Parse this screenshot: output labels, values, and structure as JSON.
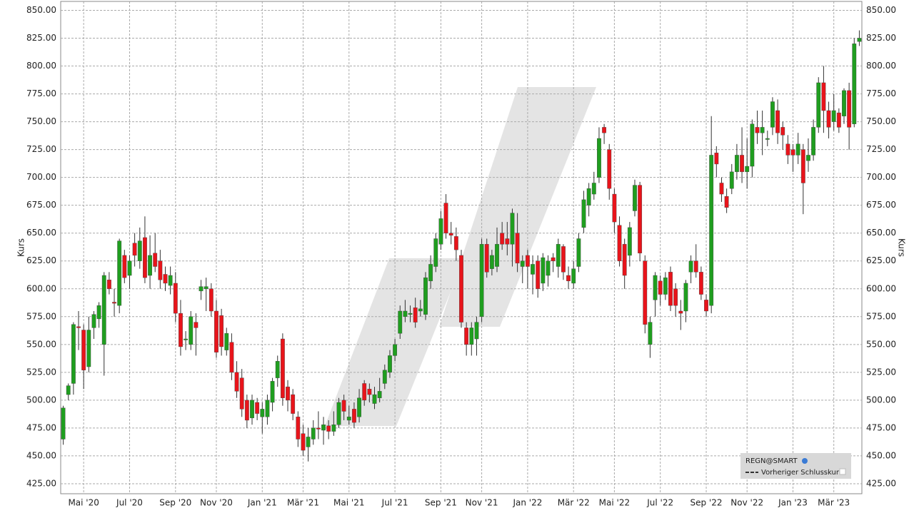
{
  "chart_data": {
    "type": "candlestick",
    "y_label": "Kurs",
    "legend": {
      "symbol": "REGN@SMART",
      "previous_close": "Vorheriger Schlusskurs"
    },
    "up_color": "#1f9e1f",
    "down_color": "#e8141b",
    "grid": true,
    "ylim": [
      416,
      858
    ],
    "yticks": [
      {
        "value": 425,
        "label": "425.00"
      },
      {
        "value": 450,
        "label": "450.00"
      },
      {
        "value": 475,
        "label": "475.00"
      },
      {
        "value": 500,
        "label": "500.00"
      },
      {
        "value": 525,
        "label": "525.00"
      },
      {
        "value": 550,
        "label": "550.00"
      },
      {
        "value": 575,
        "label": "575.00"
      },
      {
        "value": 600,
        "label": "600.00"
      },
      {
        "value": 625,
        "label": "625.00"
      },
      {
        "value": 650,
        "label": "650.00"
      },
      {
        "value": 675,
        "label": "675.00"
      },
      {
        "value": 700,
        "label": "700.00"
      },
      {
        "value": 725,
        "label": "725.00"
      },
      {
        "value": 750,
        "label": "750.00"
      },
      {
        "value": 775,
        "label": "775.00"
      },
      {
        "value": 800,
        "label": "800.00"
      },
      {
        "value": 825,
        "label": "825.00"
      },
      {
        "value": 850,
        "label": "850.00"
      }
    ],
    "categories": [
      null,
      null,
      null,
      null,
      "Mai '20",
      null,
      null,
      null,
      null,
      null,
      null,
      null,
      null,
      "Jul '20",
      null,
      null,
      null,
      null,
      null,
      null,
      null,
      null,
      "Sep '20",
      null,
      null,
      null,
      null,
      null,
      null,
      null,
      "Nov '20",
      null,
      null,
      null,
      null,
      null,
      null,
      null,
      null,
      "Jan '21",
      null,
      null,
      null,
      null,
      null,
      null,
      null,
      "Mär '21",
      null,
      null,
      null,
      null,
      null,
      null,
      null,
      null,
      "Mai '21",
      null,
      null,
      null,
      null,
      null,
      null,
      null,
      null,
      "Jul '21",
      null,
      null,
      null,
      null,
      null,
      null,
      null,
      null,
      "Sep '21",
      null,
      null,
      null,
      null,
      null,
      null,
      null,
      "Nov '21",
      null,
      null,
      null,
      null,
      null,
      null,
      null,
      null,
      "Jan '22",
      null,
      null,
      null,
      null,
      null,
      null,
      null,
      null,
      "Mär '22",
      null,
      null,
      null,
      null,
      null,
      null,
      null,
      "Mai '22",
      null,
      null,
      null,
      null,
      null,
      null,
      null,
      null,
      "Jul '22",
      null,
      null,
      null,
      null,
      null,
      null,
      null,
      null,
      "Sep '22",
      null,
      null,
      null,
      null,
      null,
      null,
      null,
      "Nov '22",
      null,
      null,
      null,
      null,
      null,
      null,
      null,
      null,
      "Jan '23",
      null,
      null,
      null,
      null,
      null,
      null,
      null,
      "Mär '23",
      null,
      null,
      null,
      null,
      null
    ],
    "open": [
      465,
      505,
      515,
      566,
      563,
      530,
      565,
      573,
      550,
      608,
      588,
      585,
      630,
      612,
      641,
      625,
      646,
      612,
      632,
      625,
      613,
      603,
      605,
      578,
      555,
      550,
      570,
      598,
      600,
      600,
      580,
      576,
      545,
      552,
      525,
      520,
      500,
      484,
      498,
      485,
      485,
      498,
      520,
      555,
      512,
      505,
      485,
      470,
      458,
      465,
      475,
      473,
      477,
      472,
      478,
      500,
      482,
      492,
      485,
      515,
      510,
      497,
      502,
      515,
      525,
      540,
      560,
      575,
      577,
      583,
      580,
      577,
      607,
      620,
      640,
      677,
      650,
      647,
      630,
      565,
      550,
      555,
      575,
      640,
      618,
      620,
      650,
      645,
      640,
      650,
      620,
      630,
      613,
      625,
      605,
      612,
      628,
      620,
      638,
      612,
      605,
      620,
      655,
      675,
      685,
      700,
      745,
      725,
      685,
      657,
      640,
      630,
      670,
      693,
      625,
      550,
      590,
      607,
      595,
      615,
      600,
      580,
      580,
      615,
      625,
      615,
      590,
      585,
      722,
      695,
      683,
      690,
      705,
      720,
      705,
      710,
      745,
      740,
      735,
      745,
      760,
      745,
      730,
      725,
      720,
      725,
      715,
      720,
      745,
      785,
      760,
      750,
      758,
      755,
      778,
      748,
      822
    ],
    "high": [
      495,
      515,
      570,
      580,
      568,
      575,
      580,
      588,
      615,
      615,
      600,
      645,
      635,
      630,
      650,
      655,
      665,
      648,
      650,
      635,
      620,
      620,
      615,
      590,
      562,
      580,
      578,
      608,
      610,
      605,
      590,
      582,
      565,
      560,
      535,
      528,
      505,
      505,
      502,
      498,
      505,
      520,
      540,
      560,
      518,
      510,
      490,
      478,
      475,
      482,
      490,
      485,
      482,
      490,
      502,
      505,
      495,
      498,
      510,
      518,
      515,
      512,
      520,
      532,
      545,
      555,
      585,
      590,
      585,
      592,
      590,
      615,
      630,
      650,
      670,
      685,
      660,
      655,
      635,
      570,
      570,
      575,
      645,
      645,
      635,
      655,
      660,
      660,
      672,
      668,
      630,
      635,
      630,
      630,
      632,
      630,
      632,
      645,
      640,
      620,
      625,
      650,
      688,
      695,
      705,
      745,
      748,
      730,
      690,
      665,
      645,
      660,
      698,
      696,
      630,
      575,
      615,
      612,
      615,
      620,
      605,
      590,
      608,
      630,
      640,
      620,
      595,
      755,
      728,
      700,
      690,
      712,
      730,
      745,
      735,
      752,
      760,
      760,
      742,
      772,
      770,
      750,
      738,
      730,
      740,
      730,
      735,
      752,
      790,
      800,
      768,
      775,
      762,
      780,
      785,
      825,
      832
    ],
    "low": [
      460,
      500,
      505,
      545,
      510,
      525,
      555,
      565,
      522,
      595,
      575,
      578,
      605,
      600,
      620,
      618,
      605,
      600,
      615,
      600,
      598,
      595,
      570,
      540,
      545,
      545,
      540,
      590,
      580,
      575,
      538,
      540,
      540,
      518,
      502,
      485,
      475,
      478,
      482,
      470,
      478,
      490,
      512,
      495,
      490,
      482,
      458,
      450,
      445,
      460,
      465,
      460,
      465,
      468,
      475,
      482,
      478,
      475,
      480,
      495,
      498,
      492,
      498,
      510,
      520,
      535,
      555,
      570,
      570,
      565,
      575,
      572,
      600,
      615,
      635,
      645,
      640,
      625,
      565,
      540,
      540,
      540,
      570,
      610,
      612,
      615,
      635,
      630,
      620,
      615,
      605,
      600,
      595,
      592,
      598,
      602,
      615,
      610,
      608,
      600,
      600,
      615,
      650,
      665,
      680,
      695,
      730,
      680,
      650,
      620,
      600,
      620,
      665,
      625,
      560,
      538,
      575,
      585,
      590,
      580,
      575,
      563,
      570,
      605,
      610,
      590,
      575,
      578,
      700,
      678,
      668,
      685,
      698,
      695,
      690,
      700,
      730,
      720,
      728,
      738,
      730,
      725,
      712,
      705,
      712,
      667,
      705,
      715,
      740,
      740,
      735,
      742,
      740,
      748,
      725,
      745,
      818
    ],
    "close": [
      493,
      513,
      568,
      565,
      527,
      563,
      577,
      585,
      612,
      600,
      587,
      643,
      610,
      625,
      630,
      643,
      610,
      630,
      620,
      608,
      605,
      612,
      578,
      548,
      555,
      575,
      565,
      602,
      602,
      580,
      543,
      548,
      560,
      525,
      508,
      492,
      482,
      500,
      488,
      492,
      500,
      517,
      535,
      502,
      500,
      488,
      465,
      455,
      467,
      475,
      474,
      478,
      472,
      478,
      498,
      490,
      485,
      480,
      502,
      500,
      505,
      505,
      508,
      527,
      540,
      550,
      580,
      580,
      578,
      570,
      582,
      610,
      622,
      645,
      663,
      650,
      648,
      635,
      570,
      550,
      565,
      570,
      640,
      615,
      630,
      640,
      640,
      640,
      668,
      623,
      625,
      620,
      622,
      600,
      628,
      625,
      625,
      640,
      615,
      607,
      618,
      645,
      680,
      690,
      695,
      735,
      740,
      690,
      660,
      625,
      612,
      655,
      693,
      632,
      568,
      570,
      612,
      595,
      610,
      585,
      585,
      578,
      605,
      625,
      615,
      595,
      580,
      720,
      712,
      685,
      673,
      705,
      720,
      705,
      710,
      748,
      740,
      745,
      735,
      768,
      740,
      738,
      720,
      720,
      730,
      695,
      720,
      745,
      785,
      760,
      745,
      760,
      745,
      778,
      745,
      820,
      825
    ]
  }
}
